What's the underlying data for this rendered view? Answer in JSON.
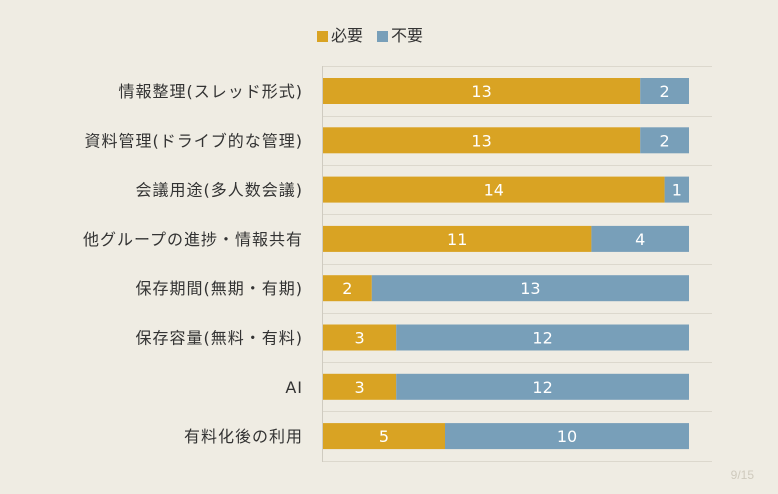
{
  "chart_data": {
    "type": "bar",
    "orientation": "horizontal",
    "stacked": true,
    "categories": [
      "情報整理(スレッド形式)",
      "資料管理(ドライブ的な管理)",
      "会議用途(多人数会議)",
      "他グループの進捗・情報共有",
      "保存期間(無期・有期)",
      "保存容量(無料・有料)",
      "AI",
      "有料化後の利用"
    ],
    "series": [
      {
        "name": "必要",
        "values": [
          13,
          13,
          14,
          11,
          2,
          3,
          3,
          5
        ],
        "color": "#d9a323"
      },
      {
        "name": "不要",
        "values": [
          2,
          2,
          1,
          4,
          13,
          12,
          12,
          10
        ],
        "color": "#789fb9"
      }
    ],
    "xlim": [
      0,
      15
    ],
    "legend": "top",
    "grid": true
  },
  "page": {
    "number": "9/15"
  }
}
